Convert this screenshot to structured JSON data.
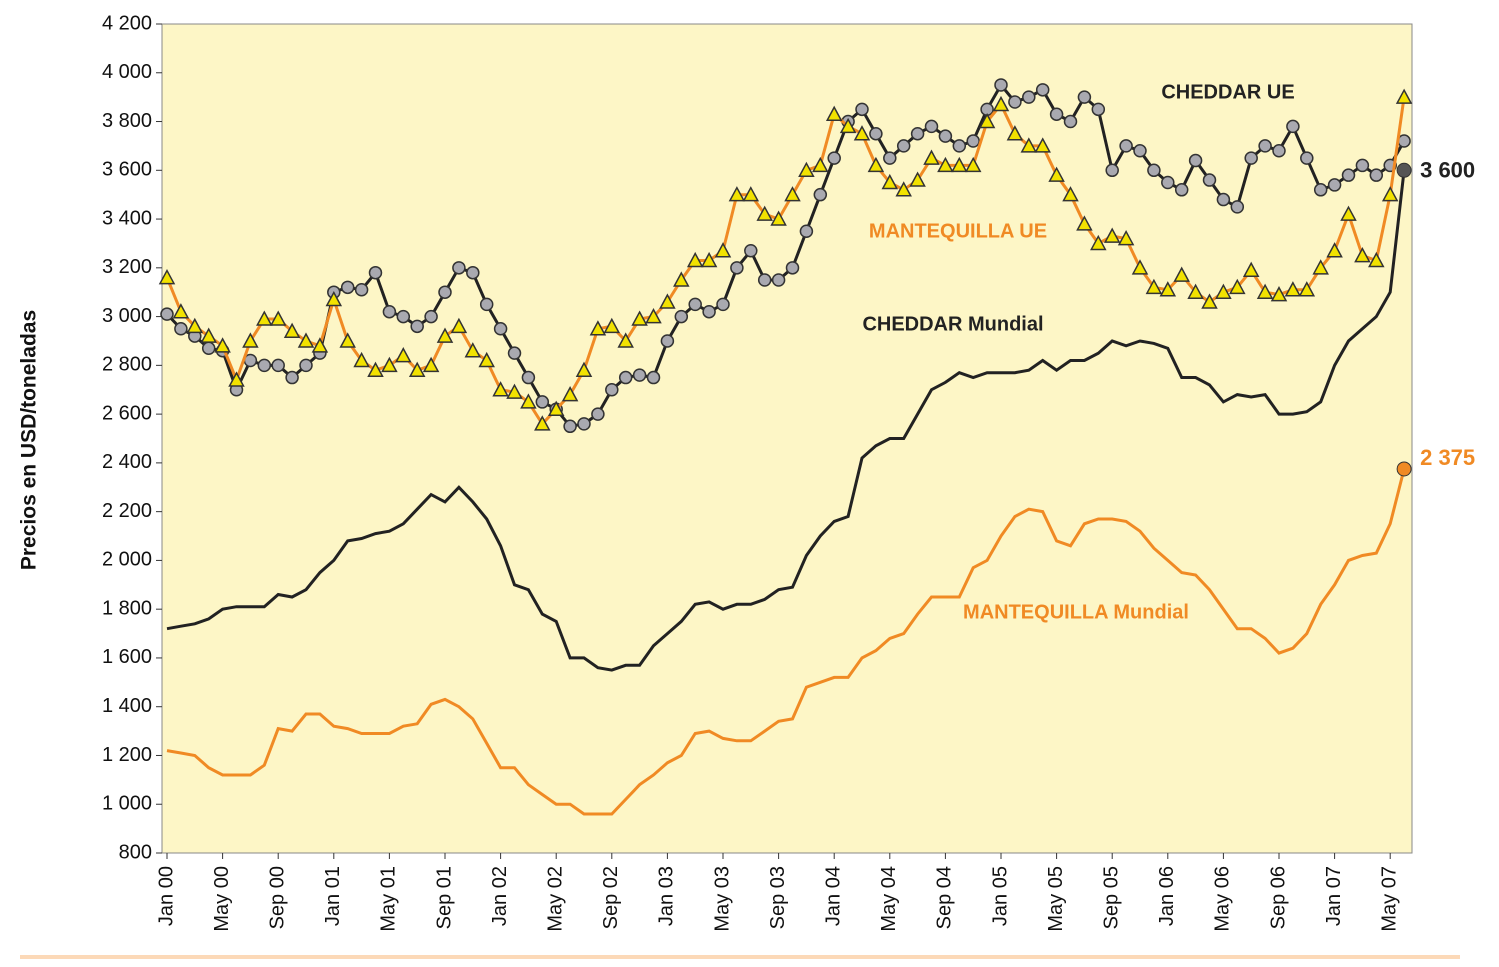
{
  "chart_data": {
    "type": "line",
    "ylabel": "Precios en USD/toneladas",
    "categories": [
      "Jan 00",
      null,
      null,
      null,
      "May 00",
      null,
      null,
      null,
      "Sep 00",
      null,
      null,
      null,
      "Jan 01",
      null,
      null,
      null,
      "May 01",
      null,
      null,
      null,
      "Sep 01",
      null,
      null,
      null,
      "Jan 02",
      null,
      null,
      null,
      "May 02",
      null,
      null,
      null,
      "Sep 02",
      null,
      null,
      null,
      "Jan 03",
      null,
      null,
      null,
      "May 03",
      null,
      null,
      null,
      "Sep 03",
      null,
      null,
      null,
      "Jan 04",
      null,
      null,
      null,
      "May 04",
      null,
      null,
      null,
      "Sep 04",
      null,
      null,
      null,
      "Jan 05",
      null,
      null,
      null,
      "May 05",
      null,
      null,
      null,
      "Sep 05",
      null,
      null,
      null,
      "Jan 06",
      null,
      null,
      null,
      "May 06",
      null,
      null,
      null,
      "Sep 06",
      null,
      null,
      null,
      "Jan 07",
      null,
      null,
      null,
      "May 07",
      null
    ],
    "ylim": [
      800,
      4200
    ],
    "yticks": [
      800,
      {
        "value": 1000,
        "label": "1 000"
      },
      {
        "value": 1200,
        "label": "1 200"
      },
      {
        "value": 1400,
        "label": "1 400"
      },
      {
        "value": 1600,
        "label": "1 600"
      },
      {
        "value": 1800,
        "label": "1 800"
      },
      {
        "value": 2000,
        "label": "2 000"
      },
      {
        "value": 2200,
        "label": "2 200"
      },
      {
        "value": 2400,
        "label": "2 400"
      },
      {
        "value": 2600,
        "label": "2 600"
      },
      {
        "value": 2800,
        "label": "2 800"
      },
      {
        "value": 3000,
        "label": "3 000"
      },
      {
        "value": 3200,
        "label": "3 200"
      },
      {
        "value": 3400,
        "label": "3 400"
      },
      {
        "value": 3600,
        "label": "3 600"
      },
      {
        "value": 3800,
        "label": "3 800"
      },
      {
        "value": 4000,
        "label": "4 000"
      },
      {
        "value": 4200,
        "label": "4 200"
      }
    ],
    "series": [
      {
        "name": "CHEDDAR  UE",
        "color": "#222222",
        "marker": "circle",
        "marker_color": "#a9a9b0",
        "values": [
          3010,
          2950,
          2920,
          2870,
          2860,
          2700,
          2820,
          2800,
          2800,
          2750,
          2800,
          2850,
          3100,
          3120,
          3110,
          3180,
          3020,
          3000,
          2960,
          3000,
          3100,
          3200,
          3180,
          3050,
          2950,
          2850,
          2750,
          2650,
          2620,
          2550,
          2560,
          2600,
          2700,
          2750,
          2760,
          2750,
          2900,
          3000,
          3050,
          3020,
          3050,
          3200,
          3270,
          3150,
          3150,
          3200,
          3350,
          3500,
          3650,
          3800,
          3850,
          3750,
          3650,
          3700,
          3750,
          3780,
          3740,
          3700,
          3720,
          3850,
          3950,
          3880,
          3900,
          3930,
          3830,
          3800,
          3900,
          3850,
          3600,
          3700,
          3680,
          3600,
          3550,
          3520,
          3640,
          3560,
          3480,
          3450,
          3650,
          3700,
          3680,
          3780,
          3650,
          3520,
          3540,
          3580,
          3620,
          3580,
          3620,
          3720
        ]
      },
      {
        "name": "MANTEQUILLA UE",
        "color": "#f08a24",
        "marker": "triangle",
        "marker_color": "#f2e200",
        "values": [
          3160,
          3020,
          2960,
          2920,
          2880,
          2740,
          2900,
          2990,
          2990,
          2940,
          2900,
          2880,
          3070,
          2900,
          2820,
          2780,
          2800,
          2840,
          2780,
          2800,
          2920,
          2960,
          2860,
          2820,
          2700,
          2690,
          2650,
          2560,
          2620,
          2680,
          2780,
          2950,
          2960,
          2900,
          2990,
          3000,
          3060,
          3150,
          3230,
          3230,
          3270,
          3500,
          3500,
          3420,
          3400,
          3500,
          3600,
          3620,
          3830,
          3780,
          3750,
          3620,
          3550,
          3520,
          3560,
          3650,
          3620,
          3620,
          3620,
          3800,
          3870,
          3750,
          3700,
          3700,
          3580,
          3500,
          3380,
          3300,
          3330,
          3320,
          3200,
          3120,
          3110,
          3170,
          3100,
          3060,
          3100,
          3120,
          3190,
          3100,
          3090,
          3110,
          3110,
          3200,
          3270,
          3420,
          3250,
          3230,
          3500,
          3900
        ]
      },
      {
        "name": "CHEDDAR  Mundial",
        "color": "#222222",
        "end_label": "3 600",
        "end_color": "#555555",
        "values": [
          1720,
          1730,
          1740,
          1760,
          1800,
          1810,
          1810,
          1810,
          1860,
          1850,
          1880,
          1950,
          2000,
          2080,
          2090,
          2110,
          2120,
          2150,
          2210,
          2270,
          2240,
          2300,
          2240,
          2170,
          2060,
          1900,
          1880,
          1780,
          1750,
          1600,
          1600,
          1560,
          1550,
          1570,
          1570,
          1650,
          1700,
          1750,
          1820,
          1830,
          1800,
          1820,
          1820,
          1840,
          1880,
          1890,
          2020,
          2100,
          2160,
          2180,
          2420,
          2470,
          2500,
          2500,
          2600,
          2700,
          2730,
          2770,
          2750,
          2770,
          2770,
          2770,
          2780,
          2820,
          2780,
          2820,
          2820,
          2850,
          2900,
          2880,
          2900,
          2890,
          2870,
          2750,
          2750,
          2720,
          2650,
          2680,
          2670,
          2680,
          2600,
          2600,
          2610,
          2650,
          2800,
          2900,
          2950,
          3000,
          3100,
          3600
        ]
      },
      {
        "name": "MANTEQUILLA Mundial",
        "color": "#f08a24",
        "end_label": "2 375",
        "end_color": "#f08a24",
        "values": [
          1220,
          1210,
          1200,
          1150,
          1120,
          1120,
          1120,
          1160,
          1310,
          1300,
          1370,
          1370,
          1320,
          1310,
          1290,
          1290,
          1290,
          1320,
          1330,
          1410,
          1430,
          1400,
          1350,
          1250,
          1150,
          1150,
          1080,
          1040,
          1000,
          1000,
          960,
          960,
          960,
          1020,
          1080,
          1120,
          1170,
          1200,
          1290,
          1300,
          1270,
          1260,
          1260,
          1300,
          1340,
          1350,
          1480,
          1500,
          1520,
          1520,
          1600,
          1630,
          1680,
          1700,
          1780,
          1850,
          1850,
          1850,
          1970,
          2000,
          2100,
          2180,
          2210,
          2200,
          2080,
          2060,
          2150,
          2170,
          2170,
          2160,
          2120,
          2050,
          2000,
          1950,
          1940,
          1880,
          1800,
          1720,
          1720,
          1680,
          1620,
          1640,
          1700,
          1820,
          1900,
          2000,
          2020,
          2030,
          2150,
          2375
        ]
      }
    ],
    "background": "#fdf6c6"
  }
}
